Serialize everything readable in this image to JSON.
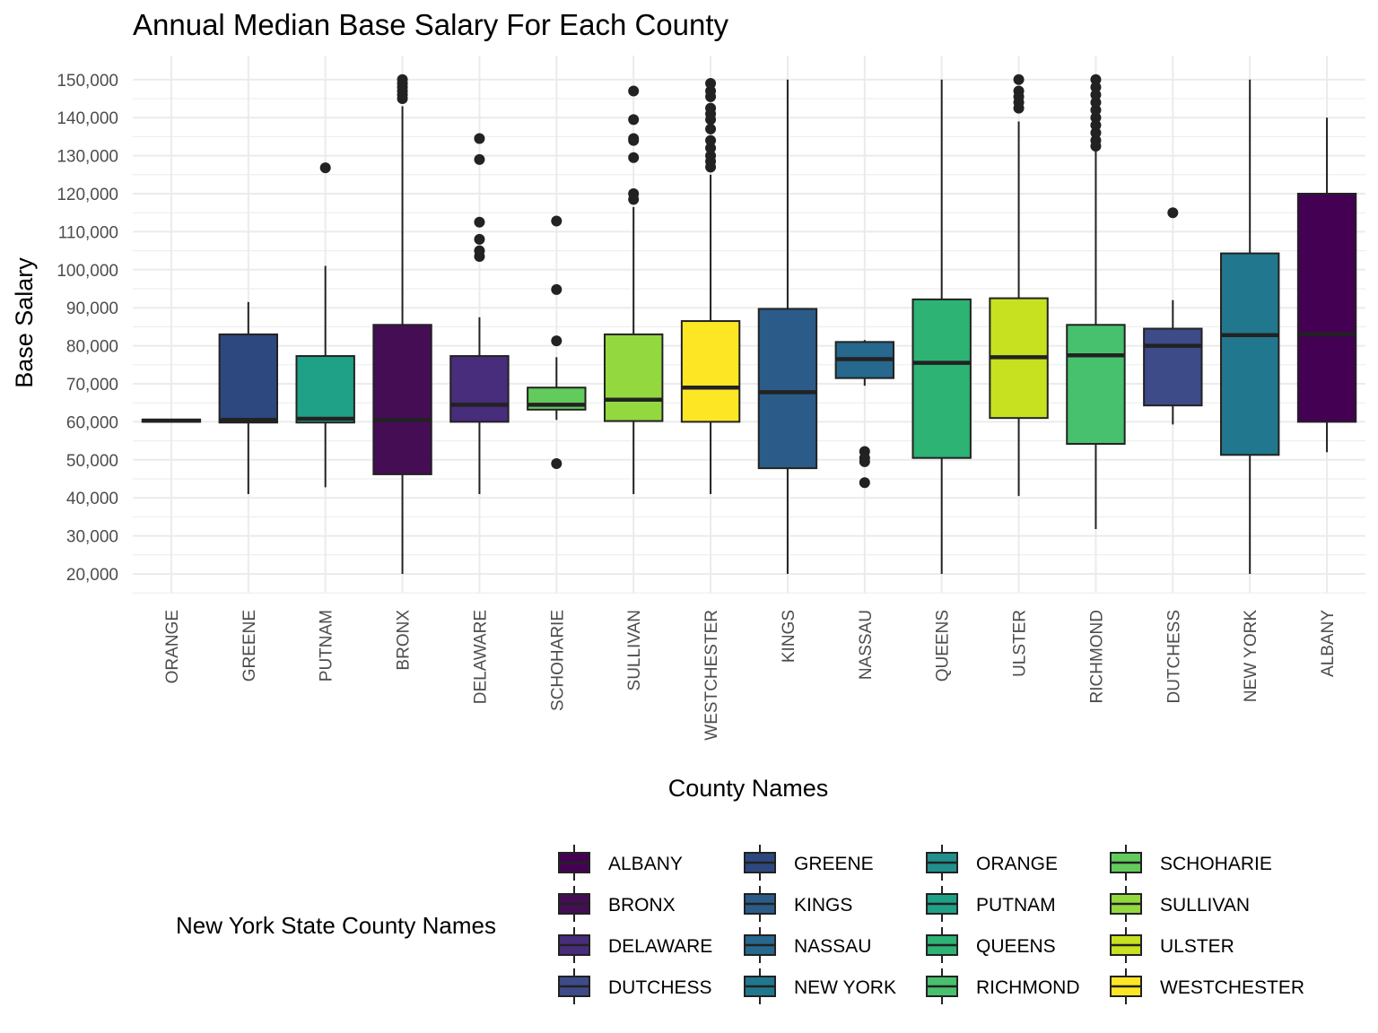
{
  "chart_data": {
    "type": "box",
    "title": "Annual Median Base Salary For Each County",
    "xlabel": "County Names",
    "ylabel": "Base Salary",
    "ylim": [
      15000,
      155000
    ],
    "yticks": [
      20000,
      30000,
      40000,
      50000,
      60000,
      70000,
      80000,
      90000,
      100000,
      110000,
      120000,
      130000,
      140000,
      150000
    ],
    "ytick_labels": [
      "20,000",
      "30,000",
      "40,000",
      "50,000",
      "60,000",
      "70,000",
      "80,000",
      "90,000",
      "100,000",
      "110,000",
      "120,000",
      "130,000",
      "140,000",
      "150,000"
    ],
    "grid": true,
    "legend_title": "New York State County Names",
    "legend_position": "bottom",
    "categories": [
      "ORANGE",
      "GREENE",
      "PUTNAM",
      "BRONX",
      "DELAWARE",
      "SCHOHARIE",
      "SULLIVAN",
      "WESTCHESTER",
      "KINGS",
      "NASSAU",
      "QUEENS",
      "ULSTER",
      "RICHMOND",
      "DUTCHESS",
      "NEW YORK",
      "ALBANY"
    ],
    "boxes": [
      {
        "category": "ORANGE",
        "min": 60000,
        "q1": 60000,
        "median": 60300,
        "q3": 60600,
        "max": 60600,
        "outliers": [],
        "color": "#21908D"
      },
      {
        "category": "GREENE",
        "min": 41000,
        "q1": 59800,
        "median": 60500,
        "q3": 83000,
        "max": 91500,
        "outliers": [],
        "color": "#2D477F"
      },
      {
        "category": "PUTNAM",
        "min": 42800,
        "q1": 59800,
        "median": 60800,
        "q3": 77300,
        "max": 101000,
        "outliers": [
          126800
        ],
        "color": "#1FA187"
      },
      {
        "category": "BRONX",
        "min": 20000,
        "q1": 46200,
        "median": 60500,
        "q3": 85500,
        "max": 143000,
        "outliers": [
          145000,
          146000,
          147000,
          148000,
          149000,
          150000
        ],
        "color": "#440D54"
      },
      {
        "category": "DELAWARE",
        "min": 41000,
        "q1": 60000,
        "median": 64500,
        "q3": 77300,
        "max": 87500,
        "outliers": [
          103500,
          105000,
          108000,
          112500,
          129000,
          134500
        ],
        "color": "#472D7B"
      },
      {
        "category": "SCHOHARIE",
        "min": 60500,
        "q1": 63200,
        "median": 64500,
        "q3": 69000,
        "max": 77000,
        "outliers": [
          49000,
          81300,
          94800,
          112800
        ],
        "color": "#62CB5C"
      },
      {
        "category": "SULLIVAN",
        "min": 41000,
        "q1": 60200,
        "median": 65800,
        "q3": 83000,
        "max": 116500,
        "outliers": [
          118500,
          120000,
          129500,
          134000,
          134500,
          139500,
          147000
        ],
        "color": "#94D840"
      },
      {
        "category": "WESTCHESTER",
        "min": 41000,
        "q1": 60000,
        "median": 69000,
        "q3": 86500,
        "max": 125000,
        "outliers": [
          127000,
          128500,
          130000,
          132000,
          134000,
          137000,
          139500,
          141000,
          142500,
          145500,
          147000,
          149000
        ],
        "color": "#FDE725"
      },
      {
        "category": "KINGS",
        "min": 20000,
        "q1": 47800,
        "median": 67800,
        "q3": 89700,
        "max": 150000,
        "outliers": [],
        "color": "#2B5C89"
      },
      {
        "category": "NASSAU",
        "min": 69500,
        "q1": 71500,
        "median": 76500,
        "q3": 81000,
        "max": 81500,
        "outliers": [
          44000,
          49500,
          50500,
          52200
        ],
        "color": "#26688E"
      },
      {
        "category": "QUEENS",
        "min": 20000,
        "q1": 50500,
        "median": 75500,
        "q3": 92200,
        "max": 150000,
        "outliers": [],
        "color": "#2DB374"
      },
      {
        "category": "ULSTER",
        "min": 40500,
        "q1": 61000,
        "median": 77000,
        "q3": 92500,
        "max": 139000,
        "outliers": [
          142500,
          144000,
          145500,
          147000,
          150000
        ],
        "color": "#C7E020"
      },
      {
        "category": "RICHMOND",
        "min": 31800,
        "q1": 54200,
        "median": 77500,
        "q3": 85500,
        "max": 131500,
        "outliers": [
          132500,
          134000,
          136000,
          138000,
          140000,
          142000,
          144000,
          146000,
          148000,
          150000
        ],
        "color": "#47C16E"
      },
      {
        "category": "DUTCHESS",
        "min": 59300,
        "q1": 64300,
        "median": 80000,
        "q3": 84500,
        "max": 92000,
        "outliers": [
          115000
        ],
        "color": "#3E4B89"
      },
      {
        "category": "NEW YORK",
        "min": 20000,
        "q1": 51300,
        "median": 82800,
        "q3": 104300,
        "max": 150000,
        "outliers": [],
        "color": "#21778D"
      },
      {
        "category": "ALBANY",
        "min": 52000,
        "q1": 60000,
        "median": 83000,
        "q3": 120000,
        "max": 140000,
        "outliers": [],
        "color": "#440154"
      }
    ],
    "legend": [
      {
        "label": "ALBANY",
        "color": "#440154"
      },
      {
        "label": "BRONX",
        "color": "#440D54"
      },
      {
        "label": "DELAWARE",
        "color": "#472D7B"
      },
      {
        "label": "DUTCHESS",
        "color": "#3E4B89"
      },
      {
        "label": "GREENE",
        "color": "#2D477F"
      },
      {
        "label": "KINGS",
        "color": "#2B5C89"
      },
      {
        "label": "NASSAU",
        "color": "#26688E"
      },
      {
        "label": "NEW YORK",
        "color": "#21778D"
      },
      {
        "label": "ORANGE",
        "color": "#21908D"
      },
      {
        "label": "PUTNAM",
        "color": "#1FA187"
      },
      {
        "label": "QUEENS",
        "color": "#2DB374"
      },
      {
        "label": "RICHMOND",
        "color": "#47C16E"
      },
      {
        "label": "SCHOHARIE",
        "color": "#62CB5C"
      },
      {
        "label": "SULLIVAN",
        "color": "#94D840"
      },
      {
        "label": "ULSTER",
        "color": "#C7E020"
      },
      {
        "label": "WESTCHESTER",
        "color": "#FDE725"
      }
    ]
  }
}
